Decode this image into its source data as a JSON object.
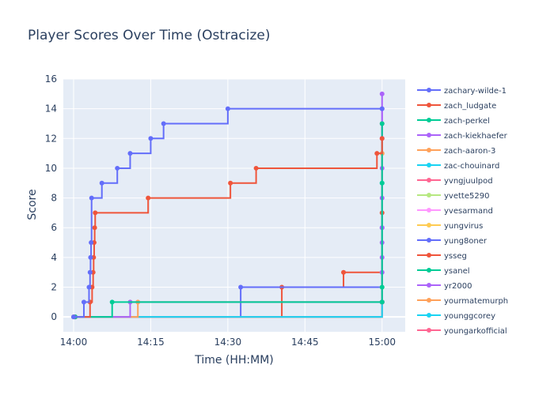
{
  "chart_data": {
    "type": "line",
    "line_shape": "step",
    "title": "Player Scores Over Time (Ostracize)",
    "xlabel": "Time (HH:MM)",
    "ylabel": "Score",
    "x_ticks": [
      "14:00",
      "14:15",
      "14:30",
      "14:45",
      "15:00"
    ],
    "x_tick_values": [
      0,
      15,
      30,
      45,
      60
    ],
    "xlim": [
      -2,
      64.5
    ],
    "ylim": [
      -1,
      16
    ],
    "y_ticks": [
      0,
      2,
      4,
      6,
      8,
      10,
      12,
      14,
      16
    ],
    "grid": true,
    "legend_placement": "right",
    "plot_background": "#e5ecf6",
    "series": [
      {
        "name": "zachary-wilde-1",
        "color": "#636efa",
        "x": [
          0,
          2,
          3,
          3.2,
          3.3,
          3.4,
          3.5,
          5.5,
          8.5,
          11,
          15,
          17.5,
          30,
          60
        ],
        "y": [
          0,
          1,
          2,
          3,
          4,
          5,
          8,
          9,
          10,
          11,
          12,
          13,
          14,
          14
        ]
      },
      {
        "name": "zach_ludgate",
        "color": "#ef553b",
        "x": [
          0,
          3.2,
          3.6,
          3.8,
          3.9,
          4.0,
          4.1,
          4.2,
          14.5,
          30.5,
          35.5,
          59,
          60
        ],
        "y": [
          0,
          1,
          2,
          3,
          4,
          5,
          6,
          7,
          8,
          9,
          10,
          11,
          12
        ]
      },
      {
        "name": "zach-perkel",
        "color": "#00cc96",
        "x": [
          0.3,
          7.5,
          60,
          60,
          60,
          60
        ],
        "y": [
          0,
          1,
          1,
          2,
          9,
          13
        ]
      },
      {
        "name": "zach-kiekhaefer",
        "color": "#ab63fa",
        "x": [
          0.3,
          11,
          60,
          60,
          60,
          60,
          60,
          60,
          60,
          60,
          60
        ],
        "y": [
          0,
          1,
          1,
          3,
          4,
          5,
          6,
          8,
          10,
          12,
          15
        ]
      },
      {
        "name": "zach-aaron-3",
        "color": "#ffa15a",
        "x": [
          0.3,
          12.5,
          60,
          60
        ],
        "y": [
          0,
          1,
          1,
          11
        ]
      },
      {
        "name": "zac-chouinard",
        "color": "#19d3f3",
        "x": [
          0.3,
          60,
          60
        ],
        "y": [
          0,
          1,
          9
        ]
      },
      {
        "name": "yvngjuulpod",
        "color": "#ff6692",
        "x": [
          0.3,
          60,
          60
        ],
        "y": [
          0,
          1,
          13
        ]
      },
      {
        "name": "yvette5290",
        "color": "#b6e880",
        "x": [
          0.3,
          60,
          60
        ],
        "y": [
          0,
          1,
          2
        ]
      },
      {
        "name": "yvesarmand",
        "color": "#ff97ff",
        "x": [
          0.3,
          60,
          60
        ],
        "y": [
          0,
          1,
          3
        ]
      },
      {
        "name": "yungvirus",
        "color": "#fecb52",
        "x": [
          0.3,
          60,
          60
        ],
        "y": [
          0,
          1,
          11
        ]
      },
      {
        "name": "yung8oner",
        "color": "#636efa",
        "x": [
          0.3,
          32.5,
          60,
          60
        ],
        "y": [
          0,
          2,
          1,
          6
        ]
      },
      {
        "name": "ysseg",
        "color": "#ef553b",
        "x": [
          0.3,
          40.5,
          52.5,
          60,
          60
        ],
        "y": [
          0,
          2,
          3,
          1,
          7
        ]
      },
      {
        "name": "ysanel",
        "color": "#00cc96",
        "x": [
          0.3,
          60
        ],
        "y": [
          0,
          1
        ]
      },
      {
        "name": "yr2000",
        "color": "#ab63fa",
        "x": [
          0.3,
          60,
          60
        ],
        "y": [
          0,
          1,
          14
        ]
      },
      {
        "name": "yourmatemurph",
        "color": "#ffa15a",
        "x": [
          0.3,
          60
        ],
        "y": [
          0,
          1
        ]
      },
      {
        "name": "younggcorey",
        "color": "#19d3f3",
        "x": [
          0.3,
          60
        ],
        "y": [
          0,
          1
        ]
      },
      {
        "name": "youngarkofficial",
        "color": "#ff6692",
        "x": [
          0.3,
          60
        ],
        "y": [
          0,
          1
        ]
      }
    ]
  }
}
